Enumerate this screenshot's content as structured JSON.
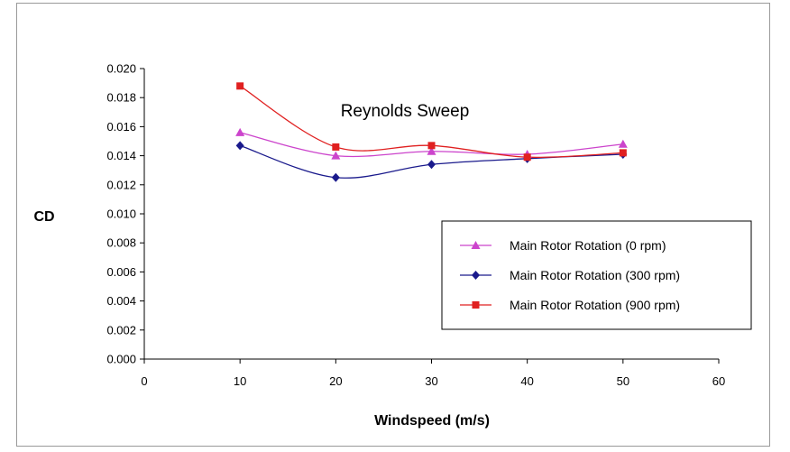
{
  "chart_data": {
    "type": "line",
    "title": "Reynolds Sweep",
    "xlabel": "Windspeed (m/s)",
    "ylabel": "CD",
    "xlim": [
      0,
      60
    ],
    "ylim": [
      0.0,
      0.02
    ],
    "xticks": [
      "0",
      "10",
      "20",
      "30",
      "40",
      "50",
      "60"
    ],
    "yticks": [
      "0.000",
      "0.002",
      "0.004",
      "0.006",
      "0.008",
      "0.010",
      "0.012",
      "0.014",
      "0.016",
      "0.018",
      "0.020"
    ],
    "x": [
      10,
      20,
      30,
      40,
      50
    ],
    "grid": false,
    "legend_position": "right",
    "series": [
      {
        "name": "Main Rotor Rotation (0 rpm)",
        "values": [
          0.0156,
          0.014,
          0.0143,
          0.0141,
          0.0148
        ],
        "color": "#cc44cc",
        "marker": "triangle"
      },
      {
        "name": "Main Rotor Rotation (300 rpm)",
        "values": [
          0.0147,
          0.0125,
          0.0134,
          0.0138,
          0.0141
        ],
        "color": "#1a1a8c",
        "marker": "diamond"
      },
      {
        "name": "Main Rotor Rotation (900 rpm)",
        "values": [
          0.0188,
          0.0146,
          0.0147,
          0.0139,
          0.0142
        ],
        "color": "#e02020",
        "marker": "square"
      }
    ]
  }
}
